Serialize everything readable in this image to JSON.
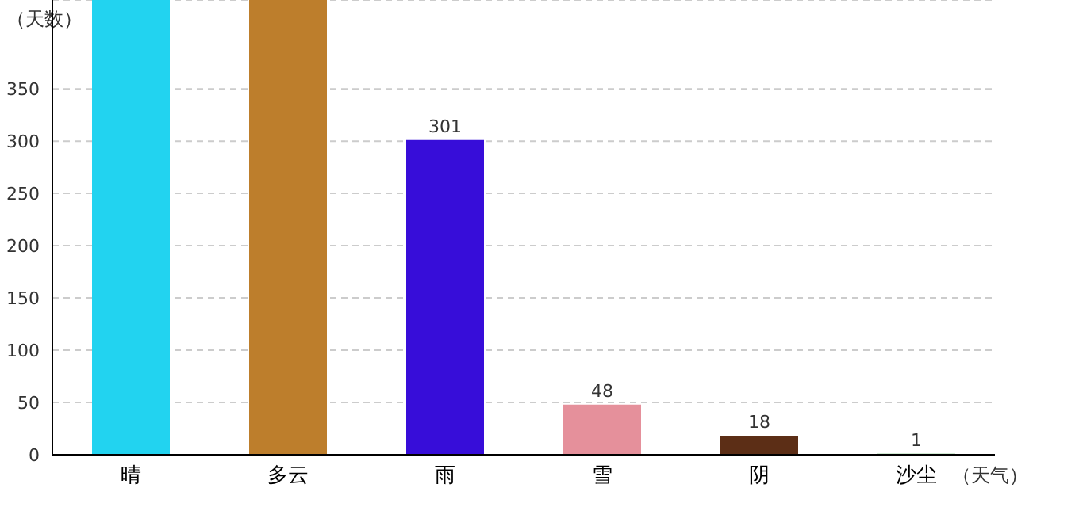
{
  "chart_data": {
    "type": "bar",
    "xlabel": "（天气）",
    "ylabel": "（天数）",
    "categories": [
      "晴",
      "多云",
      "雨",
      "雪",
      "阴",
      "沙尘"
    ],
    "values": [
      435,
      435,
      301,
      48,
      18,
      1
    ],
    "value_labels": [
      null,
      null,
      "301",
      "48",
      "18",
      "1"
    ],
    "colors": [
      "#22d3f0",
      "#bd7e2c",
      "#370dd9",
      "#e5909b",
      "#5c2e16",
      "#4caf50"
    ],
    "ylim": [
      0,
      435
    ],
    "yticks": [
      0,
      50,
      100,
      150,
      200,
      250,
      300,
      350
    ],
    "grid": "y"
  }
}
